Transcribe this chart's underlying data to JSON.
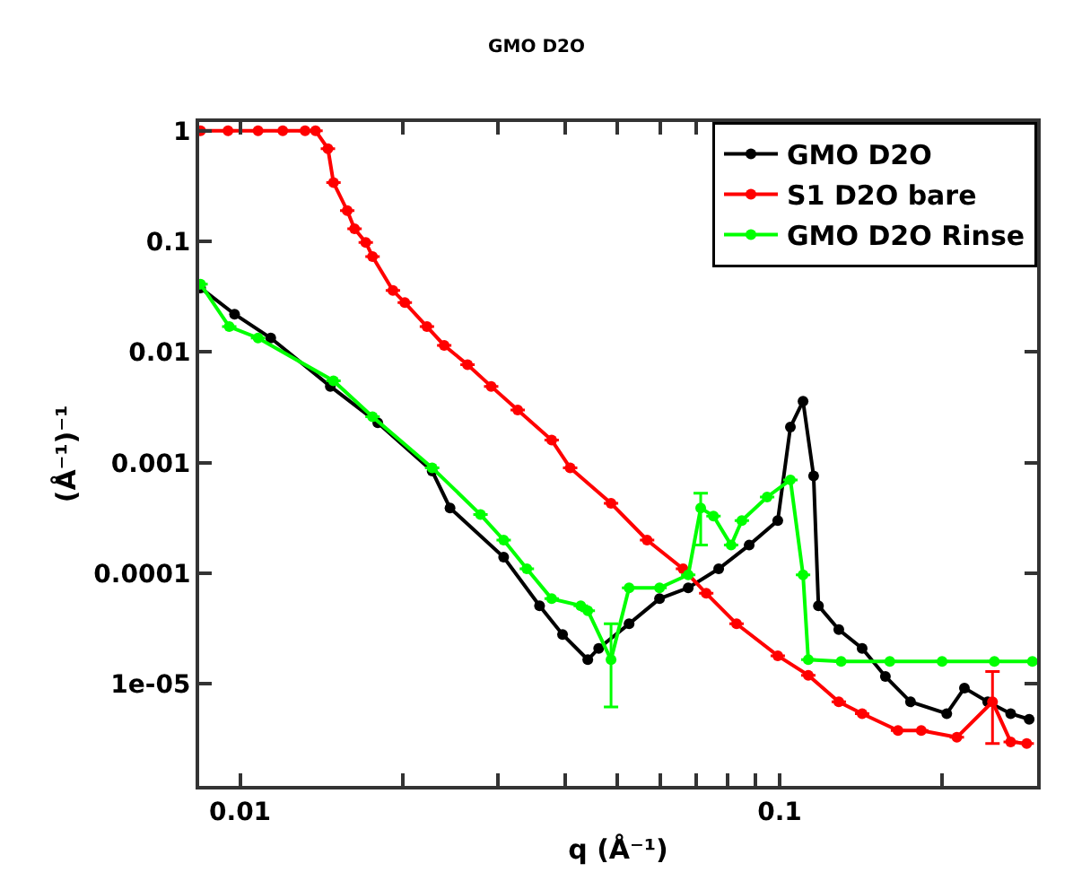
{
  "chart_data": {
    "type": "line",
    "title": "GMO D2O",
    "xlabel": "q (Å⁻¹)",
    "ylabel": "(Å⁻¹)⁻¹",
    "log": "xy",
    "grid": false,
    "legend": "top right",
    "marker": "circle",
    "line_style": "solid",
    "xlim": [
      0.0084,
      0.3
    ],
    "ylim": [
      1.2e-06,
      1.2
    ],
    "xticks": [
      0.01,
      {
        "value": 0.02,
        "label": null
      },
      {
        "value": 0.03,
        "label": null
      },
      {
        "value": 0.04,
        "label": null
      },
      {
        "value": 0.05,
        "label": null
      },
      {
        "value": 0.06,
        "label": null
      },
      {
        "value": 0.07,
        "label": null
      },
      {
        "value": 0.08,
        "label": null
      },
      {
        "value": 0.09,
        "label": null
      },
      0.1,
      {
        "value": 0.2,
        "label": null
      }
    ],
    "yticks": [
      1,
      0.1,
      0.01,
      0.001,
      0.0001,
      {
        "value": 1e-05,
        "label": "1e-05"
      }
    ],
    "series": [
      {
        "name": "GMO D2O",
        "color": "#000000",
        "x": [
          0.00845,
          0.00977,
          0.0114,
          0.0147,
          0.018,
          0.0227,
          0.0245,
          0.0308,
          0.0359,
          0.0396,
          0.0441,
          0.0462,
          0.0526,
          0.0599,
          0.0677,
          0.0771,
          0.0878,
          0.0992,
          0.1047,
          0.1105,
          0.1156,
          0.118,
          0.1287,
          0.1422,
          0.157,
          0.1748,
          0.204,
          0.22,
          0.243,
          0.268,
          0.29
        ],
        "values": [
          0.038,
          0.022,
          0.0134,
          0.0049,
          0.0023,
          0.00084,
          0.00039,
          0.00014,
          5.1e-05,
          2.8e-05,
          1.66e-05,
          2.1e-05,
          3.5e-05,
          5.9e-05,
          7.4e-05,
          0.00011,
          0.00018,
          0.0003,
          0.0021,
          0.0036,
          0.00076,
          5.1e-05,
          3.1e-05,
          2.1e-05,
          1.17e-05,
          6.9e-06,
          5.4e-06,
          9.2e-06,
          6.9e-06,
          5.4e-06,
          4.8e-06
        ]
      },
      {
        "name": "S1 D2O bare",
        "color": "#ff0000",
        "x": [
          0.00845,
          0.0095,
          0.0108,
          0.012,
          0.0132,
          0.0138,
          0.01455,
          0.0149,
          0.0158,
          0.0163,
          0.0171,
          0.0176,
          0.0192,
          0.0202,
          0.0222,
          0.0239,
          0.0264,
          0.0292,
          0.0327,
          0.0378,
          0.0409,
          0.0487,
          0.0568,
          0.0662,
          0.0731,
          0.0832,
          0.0992,
          0.113,
          0.1287,
          0.1422,
          0.1657,
          0.183,
          0.213,
          0.248,
          0.268,
          0.287
        ],
        "values": [
          1,
          1,
          1,
          1,
          1,
          1,
          0.69,
          0.34,
          0.19,
          0.13,
          0.098,
          0.073,
          0.036,
          0.028,
          0.017,
          0.0115,
          0.0077,
          0.0049,
          0.003,
          0.0016,
          0.0009,
          0.00043,
          0.0002,
          0.00011,
          6.6e-05,
          3.5e-05,
          1.8e-05,
          1.2e-05,
          6.9e-06,
          5.4e-06,
          3.8e-06,
          3.8e-06,
          3.3e-06,
          6.9e-06,
          3e-06,
          2.9e-06
        ],
        "errors": [
          null,
          null,
          null,
          null,
          null,
          null,
          null,
          null,
          null,
          null,
          null,
          null,
          null,
          null,
          null,
          null,
          null,
          null,
          null,
          null,
          null,
          null,
          null,
          null,
          null,
          null,
          null,
          null,
          null,
          null,
          null,
          null,
          null,
          [
            2.9e-06,
            1.3e-05
          ],
          null,
          null
        ]
      },
      {
        "name": "GMO D2O Rinse",
        "color": "#00ff00",
        "x": [
          0.00845,
          0.00955,
          0.0108,
          0.0149,
          0.0176,
          0.0227,
          0.0279,
          0.0308,
          0.034,
          0.0378,
          0.0428,
          0.0441,
          0.0487,
          0.0526,
          0.0599,
          0.0677,
          0.0714,
          0.0754,
          0.0813,
          0.0851,
          0.0948,
          0.1047,
          0.1105,
          0.113,
          0.13,
          0.16,
          0.2,
          0.25,
          0.294
        ],
        "values": [
          0.041,
          0.017,
          0.0134,
          0.0055,
          0.0026,
          0.0009,
          0.00034,
          0.0002,
          0.00011,
          5.9e-05,
          5.1e-05,
          4.6e-05,
          1.66e-05,
          7.4e-05,
          7.4e-05,
          9.7e-05,
          0.00039,
          0.00033,
          0.00018,
          0.0003,
          0.00049,
          0.0007,
          9.7e-05,
          1.66e-05,
          1.6e-05,
          1.6e-05,
          1.6e-05,
          1.6e-05,
          1.6e-05
        ],
        "errors": [
          null,
          null,
          null,
          null,
          null,
          null,
          null,
          null,
          null,
          null,
          null,
          null,
          [
            6.2e-06,
            3.5e-05
          ],
          null,
          null,
          null,
          [
            0.00018,
            0.00053
          ],
          null,
          null,
          null,
          null,
          null,
          null,
          null,
          null,
          null,
          null,
          null,
          null
        ]
      }
    ]
  }
}
